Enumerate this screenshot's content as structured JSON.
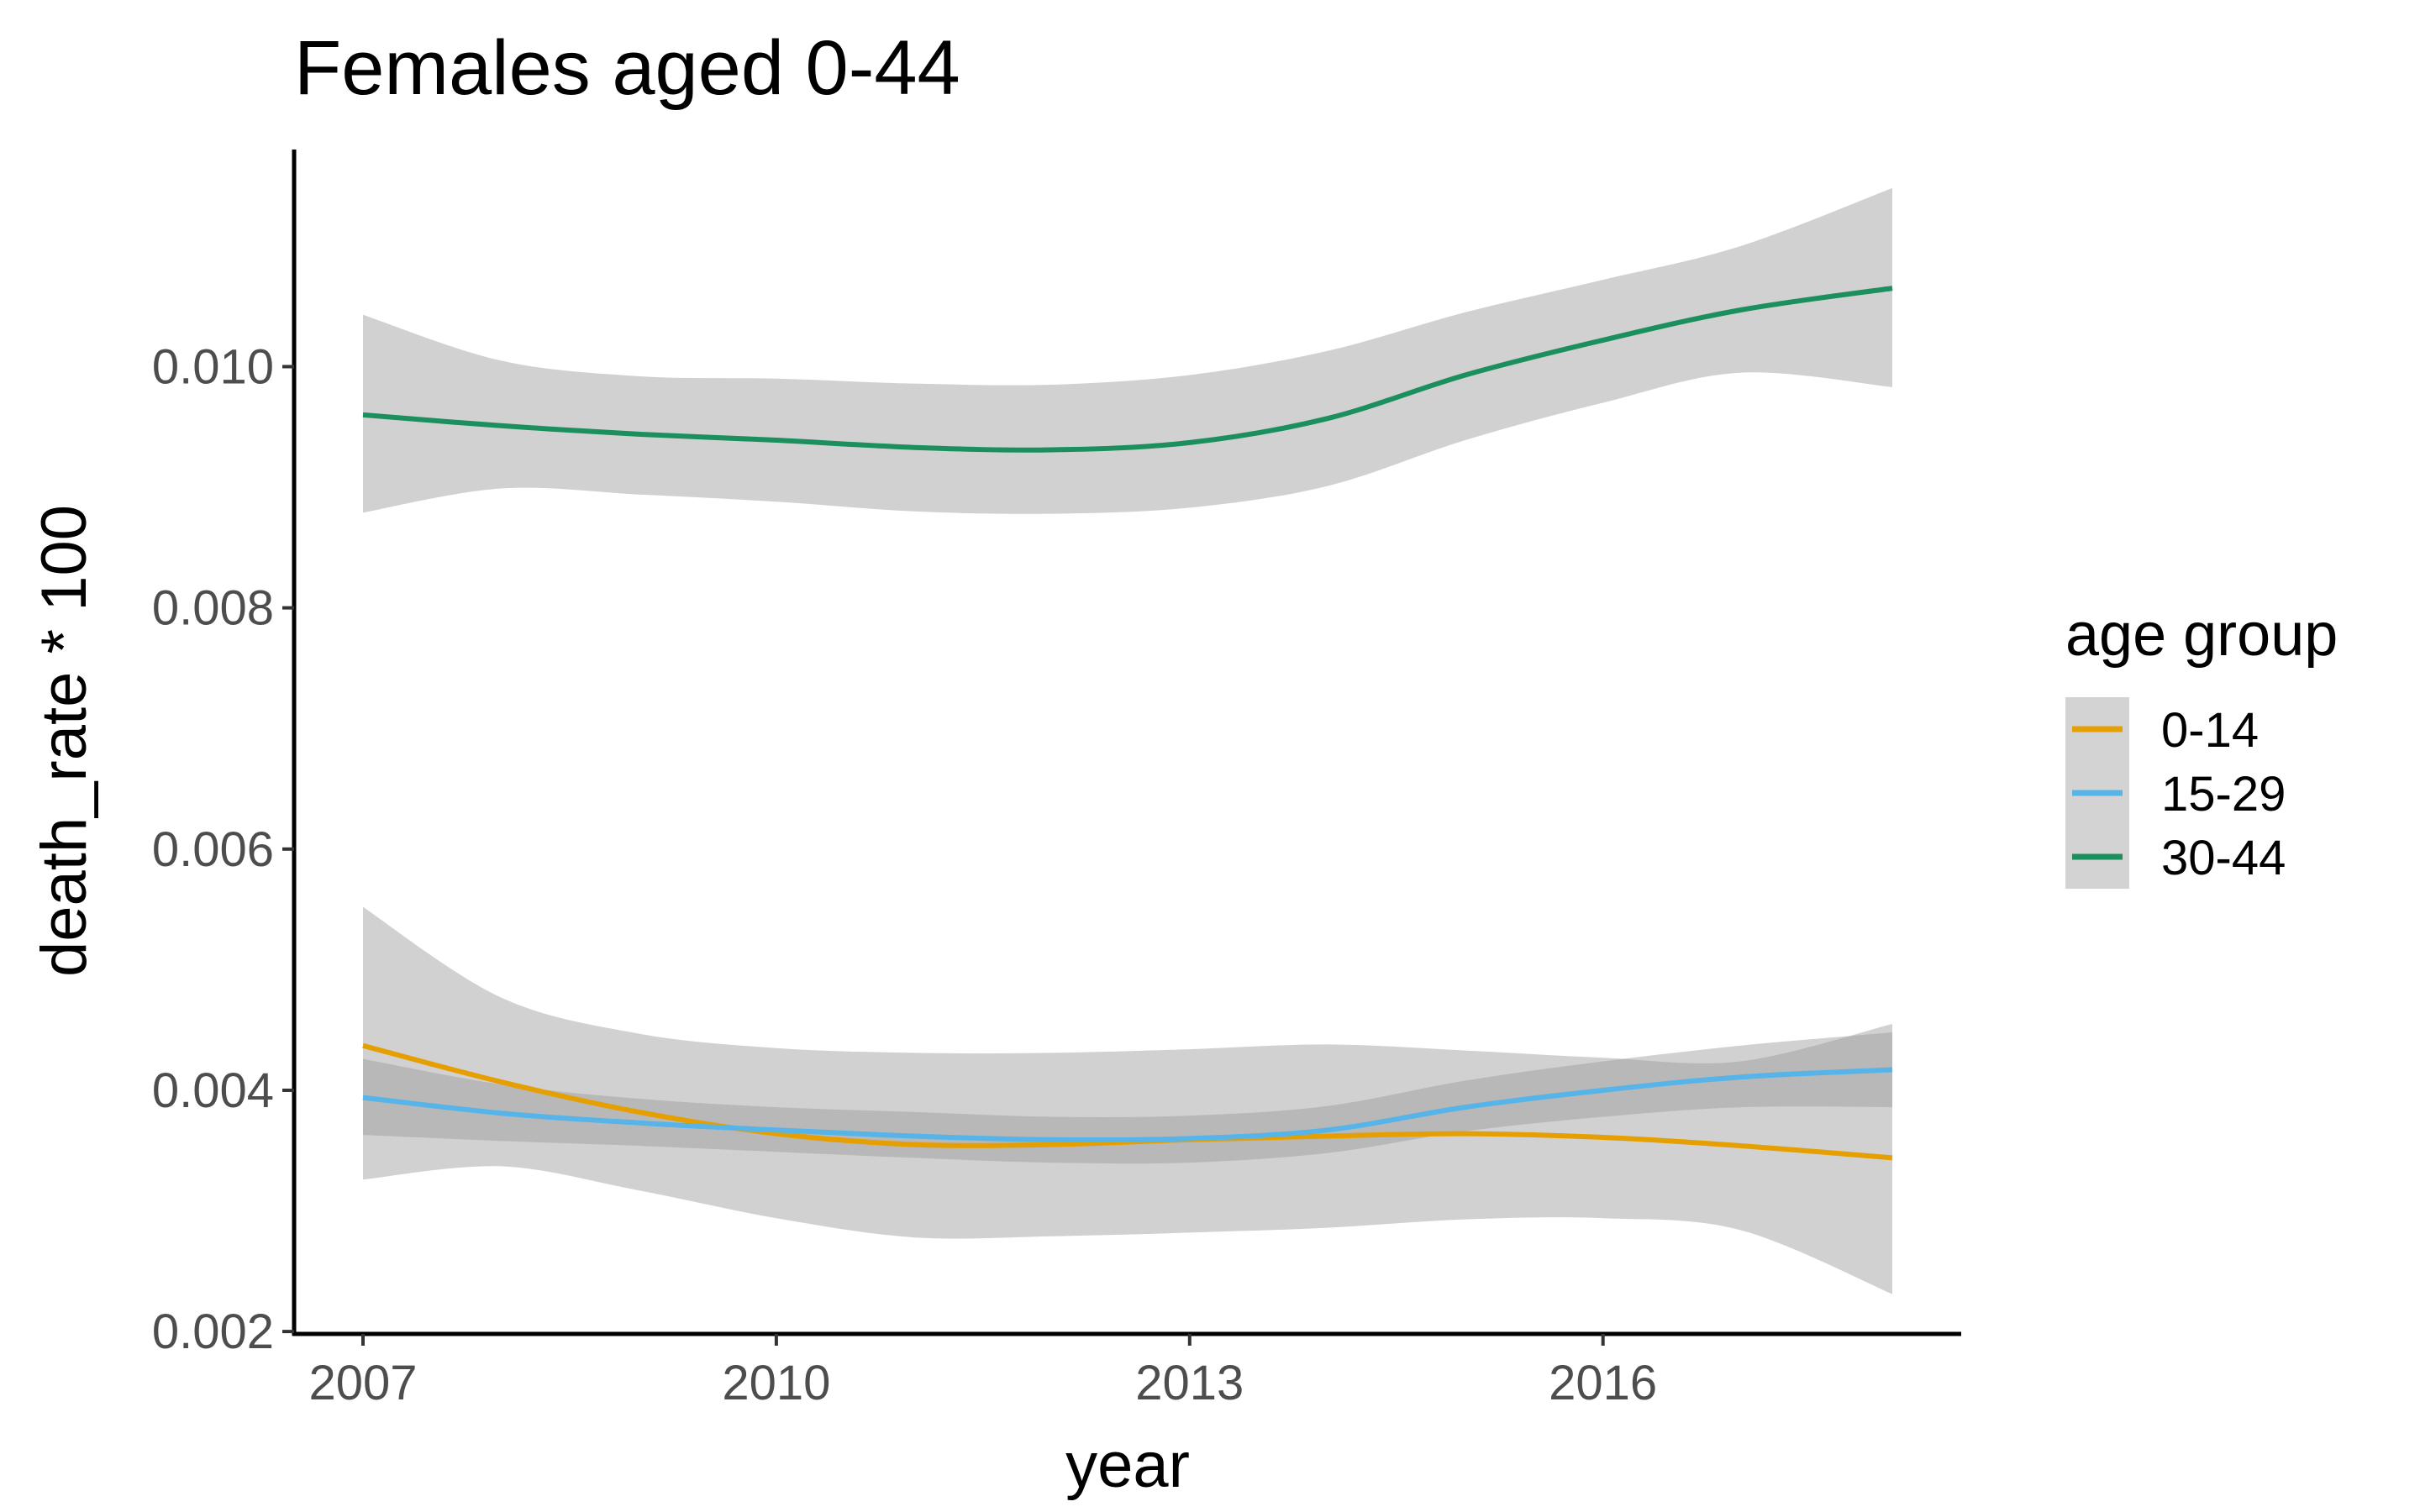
{
  "chart_data": {
    "type": "line",
    "title": "Females aged 0-44",
    "xlabel": "year",
    "ylabel": "death_rate * 100",
    "xlim": [
      2006.5,
      2018.6
    ],
    "ylim": [
      0.00198,
      0.0118
    ],
    "xticks": [
      2007,
      2010,
      2013,
      2016
    ],
    "xtick_labels": [
      "2007",
      "2010",
      "2013",
      "2016"
    ],
    "yticks": [
      0.002,
      0.004,
      0.006,
      0.008,
      0.01
    ],
    "ytick_labels": [
      "0.002",
      "0.004",
      "0.006",
      "0.008",
      "0.010"
    ],
    "grid": false,
    "legend": {
      "title": "age group",
      "position": "right"
    },
    "x": [
      2007,
      2008,
      2009,
      2010,
      2011,
      2012,
      2013,
      2014,
      2015,
      2016,
      2017,
      2018.1
    ],
    "series": [
      {
        "name": "0-14",
        "color": "#E69F00",
        "values": [
          0.00437,
          0.00407,
          0.00382,
          0.00364,
          0.00355,
          0.00355,
          0.00359,
          0.00362,
          0.00364,
          0.00361,
          0.00354,
          0.00344
        ],
        "lower": [
          0.00326,
          0.00337,
          0.00317,
          0.00294,
          0.00278,
          0.00279,
          0.00282,
          0.00286,
          0.00293,
          0.00294,
          0.00284,
          0.00231
        ],
        "upper": [
          0.00552,
          0.00477,
          0.00447,
          0.00435,
          0.00431,
          0.00431,
          0.00434,
          0.00438,
          0.00433,
          0.00427,
          0.00424,
          0.00455
        ]
      },
      {
        "name": "15-29",
        "color": "#56B4E9",
        "values": [
          0.00394,
          0.00381,
          0.00373,
          0.00367,
          0.00362,
          0.00359,
          0.0036,
          0.00367,
          0.00386,
          0.004,
          0.00411,
          0.00417
        ],
        "lower": [
          0.00363,
          0.00358,
          0.00354,
          0.00349,
          0.00344,
          0.0034,
          0.0034,
          0.00348,
          0.00366,
          0.00378,
          0.00386,
          0.00386
        ],
        "upper": [
          0.00426,
          0.00405,
          0.00393,
          0.00386,
          0.00382,
          0.00378,
          0.00379,
          0.00387,
          0.00408,
          0.00424,
          0.00437,
          0.00448
        ]
      },
      {
        "name": "30-44",
        "color": "#1B8F5E",
        "values": [
          0.0096,
          0.00951,
          0.00944,
          0.00939,
          0.00933,
          0.00931,
          0.00937,
          0.00957,
          0.00993,
          0.01022,
          0.01047,
          0.01065
        ],
        "lower": [
          0.00879,
          0.00899,
          0.00894,
          0.00888,
          0.0088,
          0.00878,
          0.00883,
          0.00901,
          0.00939,
          0.0097,
          0.00995,
          0.00983
        ],
        "upper": [
          0.01043,
          0.01005,
          0.00992,
          0.0099,
          0.00986,
          0.00985,
          0.00993,
          0.01013,
          0.01045,
          0.01072,
          0.011,
          0.01148
        ]
      }
    ]
  }
}
